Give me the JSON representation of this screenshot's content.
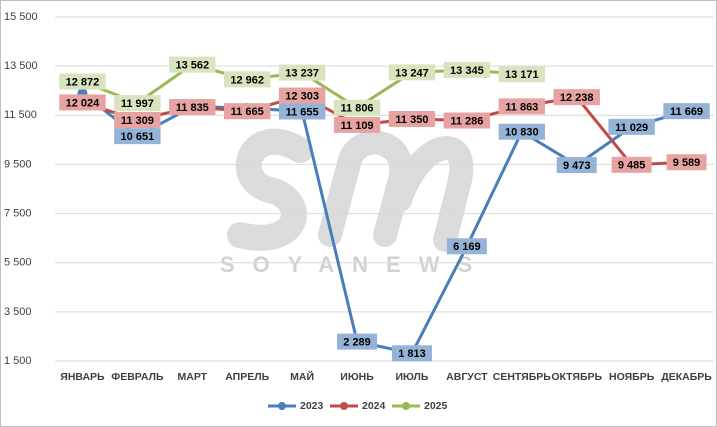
{
  "chart_data": {
    "type": "line",
    "watermark": "SOYANEWS",
    "categories": [
      "ЯНВАРЬ",
      "ФЕВРАЛЬ",
      "МАРТ",
      "АПРЕЛЬ",
      "МАЙ",
      "ИЮНЬ",
      "ИЮЛЬ",
      "АВГУСТ",
      "СЕНТЯБРЬ",
      "ОКТЯБРЬ",
      "НОЯБРЬ",
      "ДЕКАБРЬ"
    ],
    "series": [
      {
        "name": "2023",
        "color": "#4a7ebb",
        "label_color": "#95b3d7",
        "values": [
          12400,
          10651,
          11850,
          11800,
          11655,
          2289,
          1813,
          6169,
          10830,
          9473,
          11029,
          11669
        ],
        "value_labels": [
          null,
          "10 651",
          null,
          null,
          "11 655",
          "2 289",
          "1 813",
          "6 169",
          "10 830",
          "9 473",
          "11 029",
          "11 669"
        ]
      },
      {
        "name": "2024",
        "color": "#be4b48",
        "label_color": "#e6a3a1",
        "values": [
          12024,
          11309,
          11835,
          11665,
          12303,
          11109,
          11350,
          11286,
          11863,
          12238,
          9485,
          9589
        ],
        "value_labels": [
          "12 024",
          "11 309",
          "11 835",
          "11 665",
          "12 303",
          "11 109",
          "11 350",
          "11 286",
          "11 863",
          "12 238",
          "9 485",
          "9 589"
        ]
      },
      {
        "name": "2025",
        "color": "#98b954",
        "label_color": "#d7e4bd",
        "values": [
          12872,
          11997,
          13562,
          12962,
          13237,
          11806,
          13247,
          13345,
          13171,
          null,
          null,
          null
        ],
        "value_labels": [
          "12 872",
          "11 997",
          "13 562",
          "12 962",
          "13 237",
          "11 806",
          "13 247",
          "13 345",
          "13 171",
          null,
          null,
          null
        ]
      }
    ],
    "ylim": [
      1500,
      15500
    ],
    "yticks": [
      {
        "value": 1500,
        "label": "1 500"
      },
      {
        "value": 3500,
        "label": "3 500"
      },
      {
        "value": 5500,
        "label": "5 500"
      },
      {
        "value": 7500,
        "label": "7 500"
      },
      {
        "value": 9500,
        "label": "9 500"
      },
      {
        "value": 11500,
        "label": "11 500"
      },
      {
        "value": 13500,
        "label": "13 500"
      },
      {
        "value": 15500,
        "label": "15 500"
      }
    ],
    "grid": true
  }
}
